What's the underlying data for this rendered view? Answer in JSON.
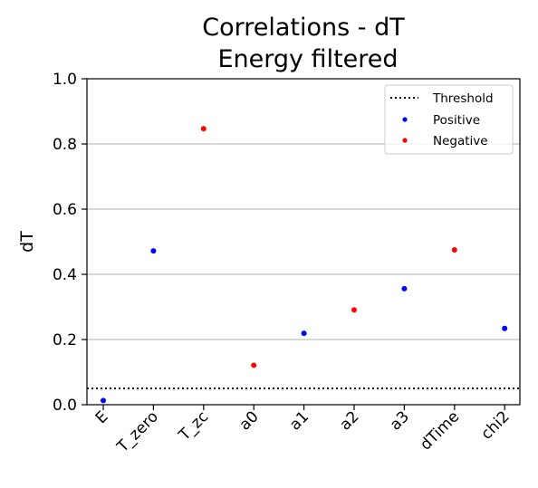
{
  "chart_data": {
    "type": "scatter",
    "title_lines": [
      "Correlations - dT",
      "Energy filtered"
    ],
    "xlabel": "",
    "ylabel": "dT",
    "categories": [
      "E",
      "T_zero",
      "T_zc",
      "a0",
      "a1",
      "a2",
      "a3",
      "dTime",
      "chi2"
    ],
    "ylim": [
      0.0,
      1.0
    ],
    "yticks": [
      0.0,
      0.2,
      0.4,
      0.6,
      0.8,
      1.0
    ],
    "ytick_labels": [
      "0.0",
      "0.2",
      "0.4",
      "0.6",
      "0.8",
      "1.0"
    ],
    "grid": "y",
    "legend_position": "upper right",
    "threshold": {
      "name": "Threshold",
      "value": 0.05,
      "style": "dotted",
      "color": "#000000"
    },
    "series": [
      {
        "name": "Positive",
        "color": "#0000ff",
        "points": [
          {
            "x": "E",
            "y": 0.013
          },
          {
            "x": "T_zero",
            "y": 0.472
          },
          {
            "x": "a1",
            "y": 0.219
          },
          {
            "x": "a3",
            "y": 0.356
          },
          {
            "x": "chi2",
            "y": 0.234
          }
        ]
      },
      {
        "name": "Negative",
        "color": "#ff0000",
        "points": [
          {
            "x": "T_zc",
            "y": 0.847
          },
          {
            "x": "a0",
            "y": 0.121
          },
          {
            "x": "a2",
            "y": 0.291
          },
          {
            "x": "dTime",
            "y": 0.475
          }
        ]
      }
    ]
  }
}
